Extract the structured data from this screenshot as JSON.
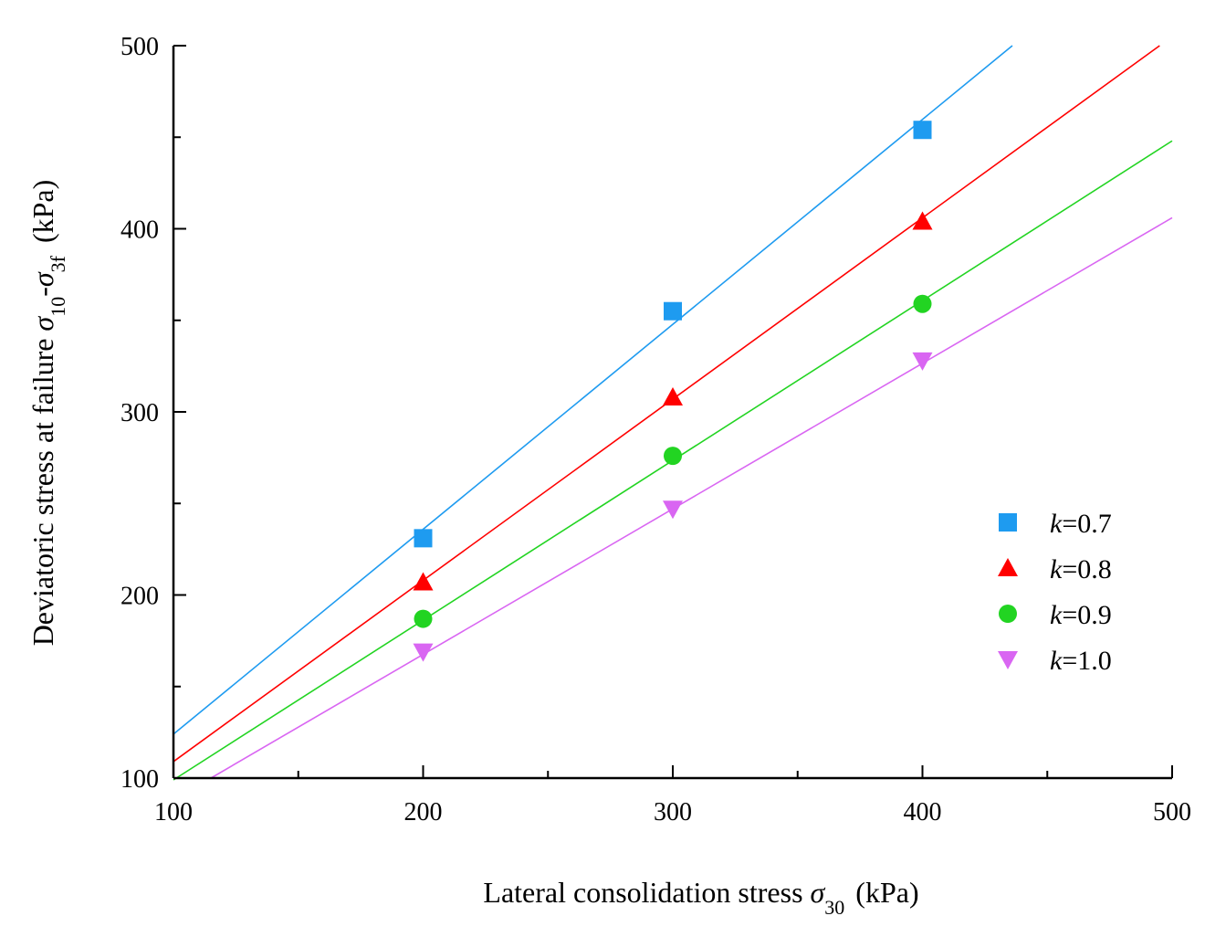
{
  "chart_data": {
    "type": "scatter",
    "title": "",
    "xlabel": {
      "prefix": "Lateral consolidation stress ",
      "symbol": "σ",
      "subscript": "30",
      "unit": "(kPa)"
    },
    "ylabel": {
      "prefix": "Deviatoric stress at failure ",
      "symbol1": "σ",
      "sub1": "10",
      "dash": "-",
      "symbol2": "σ",
      "sub2": "3f",
      "unit": "(kPa)"
    },
    "xlim": [
      100,
      500
    ],
    "ylim": [
      100,
      500
    ],
    "xticks": [
      "100",
      "200",
      "300",
      "400",
      "500"
    ],
    "yticks": [
      "100",
      "200",
      "300",
      "400",
      "500"
    ],
    "grid": false,
    "legend_position": "right",
    "series": [
      {
        "name": "k=0.7",
        "k_symbol": "k",
        "k_value": "=0.7",
        "marker": "square",
        "color": "#1E9BF0",
        "x": [
          200,
          300,
          400
        ],
        "y": [
          231,
          355,
          454
        ],
        "fit": {
          "x": [
            100,
            436
          ],
          "y": [
            124,
            500
          ]
        }
      },
      {
        "name": "k=0.8",
        "k_symbol": "k",
        "k_value": "=0.8",
        "marker": "triangle-up",
        "color": "#FF0000",
        "x": [
          200,
          300,
          400
        ],
        "y": [
          207,
          308,
          404
        ],
        "fit": {
          "x": [
            100,
            495
          ],
          "y": [
            109,
            500
          ]
        }
      },
      {
        "name": "k=0.9",
        "k_symbol": "k",
        "k_value": "=0.9",
        "marker": "circle",
        "color": "#22D422",
        "x": [
          200,
          300,
          400
        ],
        "y": [
          187,
          276,
          359
        ],
        "fit": {
          "x": [
            100,
            500
          ],
          "y": [
            99,
            448
          ]
        }
      },
      {
        "name": "k=1.0",
        "k_symbol": "k",
        "k_value": "=1.0",
        "marker": "triangle-down",
        "color": "#D966F2",
        "x": [
          200,
          300,
          400
        ],
        "y": [
          169,
          247,
          328
        ],
        "fit": {
          "x": [
            115,
            500
          ],
          "y": [
            100,
            406
          ]
        }
      }
    ]
  }
}
